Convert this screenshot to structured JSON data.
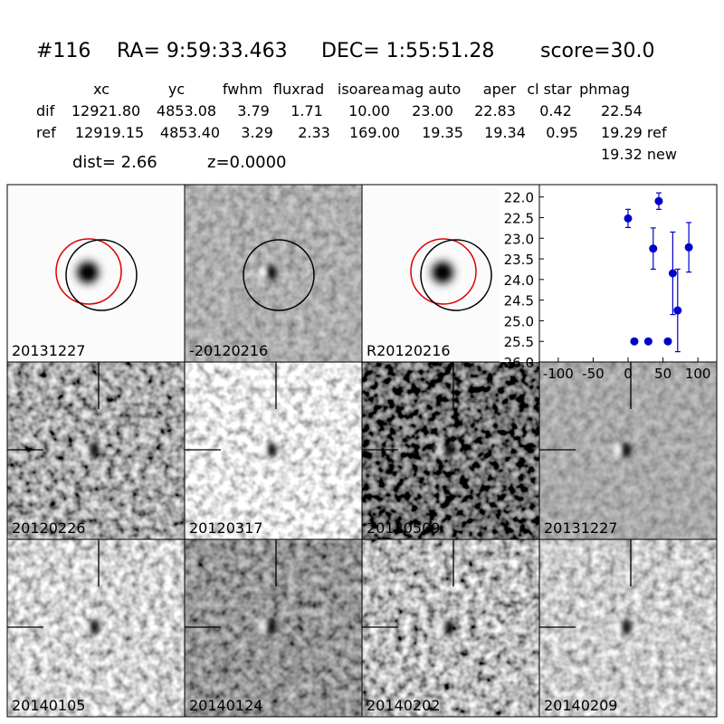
{
  "header": {
    "id": "#116",
    "ra": "RA= 9:59:33.463",
    "dec": "DEC= 1:55:51.28",
    "score": "score=30.0"
  },
  "table": {
    "columns": [
      "xc",
      "yc",
      "fwhm",
      "fluxrad",
      "isoarea",
      "mag auto",
      "aper",
      "cl star",
      "phmag"
    ],
    "rows": [
      [
        "dif",
        "12921.80",
        "4853.08",
        "3.79",
        "1.71",
        "10.00",
        "23.00",
        "22.83",
        "0.42",
        "22.54"
      ],
      [
        "ref",
        "12919.15",
        "4853.40",
        "3.29",
        "2.33",
        "169.00",
        "19.35",
        "19.34",
        "0.95",
        "19.29 ref"
      ]
    ],
    "extra": "19.32 new"
  },
  "summary": {
    "dist": "dist=  2.66",
    "z": "z=0.0000"
  },
  "panels": [
    {
      "label": "20131227"
    },
    {
      "label": "-20120216"
    },
    {
      "label": "R20120216"
    },
    {
      "label": "20120226"
    },
    {
      "label": "20120317"
    },
    {
      "label": "20120509"
    },
    {
      "label": "20131227",
      "label_color": "#ff0000"
    },
    {
      "label": "20140105"
    },
    {
      "label": "20140124"
    },
    {
      "label": "20140202"
    },
    {
      "label": "20140209"
    }
  ],
  "chart_data": {
    "type": "scatter",
    "color": "#0000cc",
    "x": [
      0,
      9,
      29,
      36,
      44,
      57,
      64,
      71,
      87
    ],
    "values": [
      22.52,
      25.5,
      25.5,
      23.25,
      22.1,
      25.5,
      23.85,
      24.75,
      23.22
    ],
    "errors": [
      0.22,
      0.03,
      0.03,
      0.5,
      0.2,
      0.03,
      1.0,
      1.0,
      0.6
    ],
    "xlim": [
      -127,
      127
    ],
    "ylim": [
      26.0,
      21.7
    ],
    "xticks": [
      -100,
      -50,
      0,
      50,
      100
    ],
    "yticks": [
      {
        "value": 22,
        "label": "22.0"
      },
      22.5,
      {
        "value": 23,
        "label": "23.0"
      },
      23.5,
      {
        "value": 24,
        "label": "24.0"
      },
      24.5,
      {
        "value": 25,
        "label": "25.0"
      },
      25.5,
      {
        "value": 26,
        "label": "26.0"
      }
    ]
  }
}
